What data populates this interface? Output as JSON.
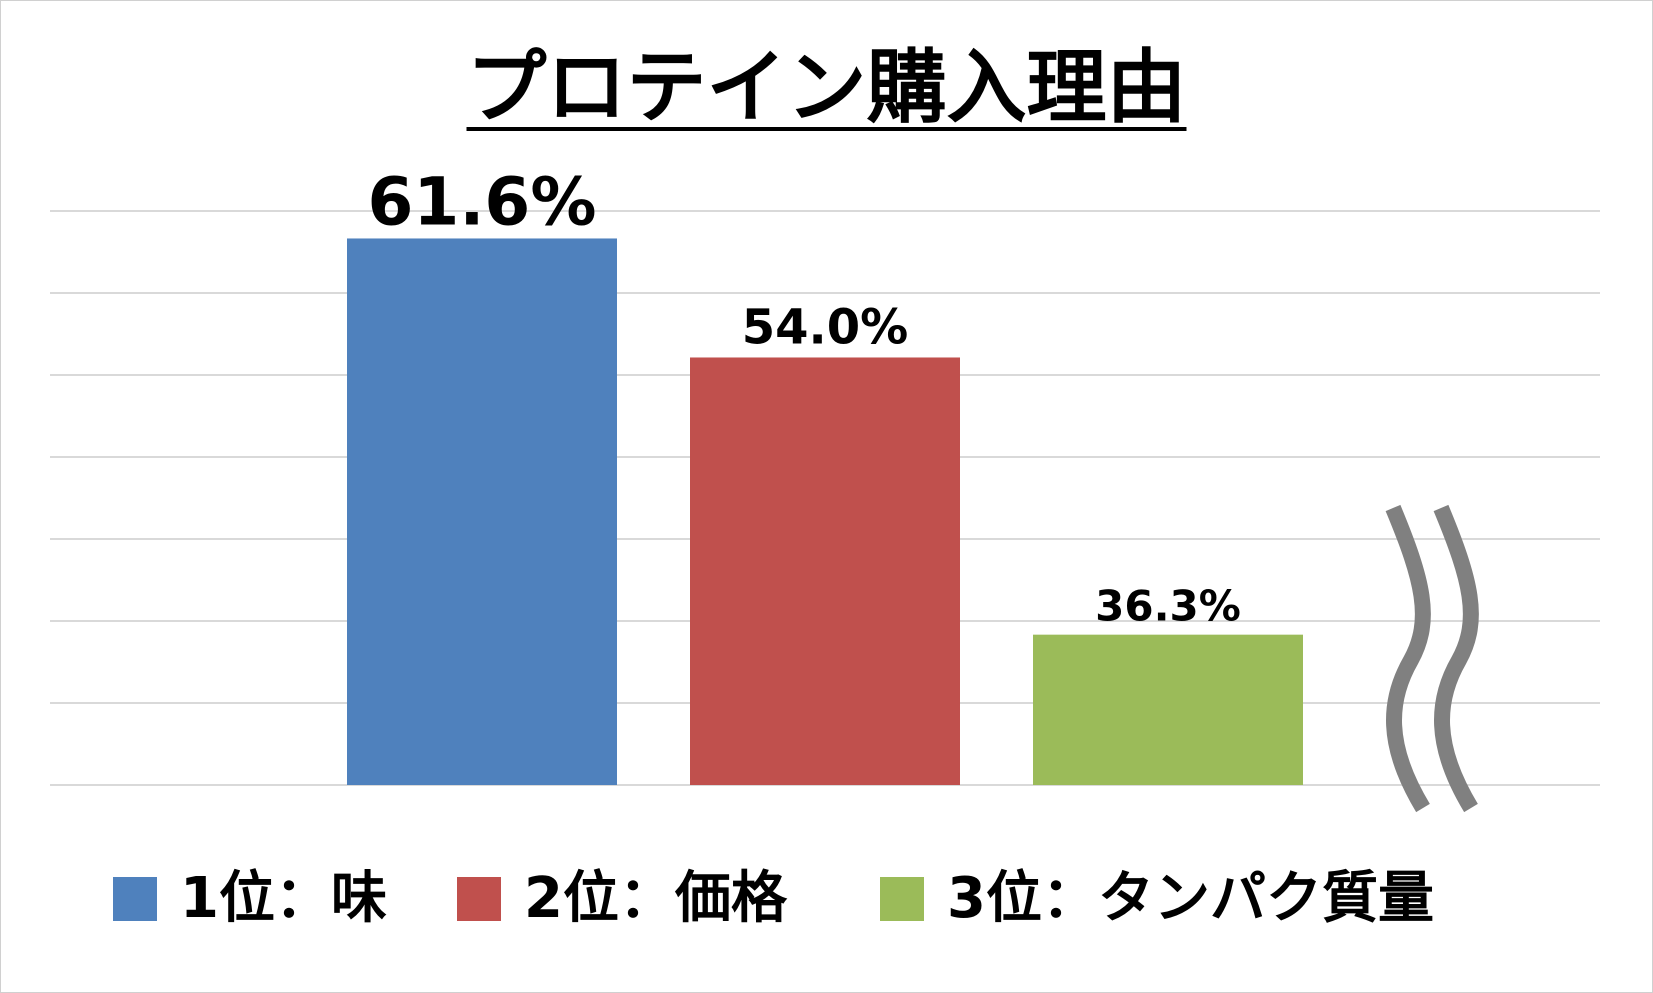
{
  "chart_data": {
    "type": "bar",
    "title": "プロテイン購入理由",
    "categories": [
      "1位：味",
      "2位：価格",
      "3位：タンパク質量"
    ],
    "values": [
      61.6,
      54.0,
      36.3
    ],
    "labels": [
      "61.6%",
      "54.0%",
      "36.3%"
    ],
    "colors": [
      "#4f81bd",
      "#c0504d",
      "#9bbb59"
    ],
    "axis_break_color": "#808080",
    "grid": true,
    "legend": "bottom"
  }
}
